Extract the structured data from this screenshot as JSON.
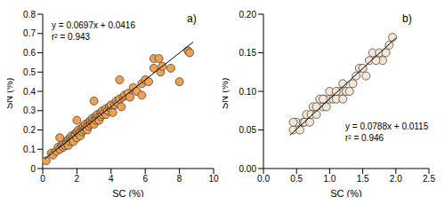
{
  "chart_data": [
    {
      "type": "scatter",
      "title": "a)",
      "x_label": "SC (%)",
      "y_label": "SN (%)",
      "xlim": [
        0,
        10
      ],
      "xticks": [
        0,
        2,
        4,
        6,
        8,
        10
      ],
      "ylim": [
        0,
        0.8
      ],
      "yticks": [
        0,
        0.1,
        0.2,
        0.3,
        0.4,
        0.5,
        0.6,
        0.7,
        0.8
      ],
      "color": "#f0a050",
      "marker": "circle",
      "x": [
        0.2,
        0.5,
        0.6,
        0.8,
        0.9,
        1.0,
        1.1,
        1.2,
        1.2,
        1.3,
        1.4,
        1.4,
        1.5,
        1.5,
        1.6,
        1.6,
        1.7,
        1.7,
        1.8,
        1.8,
        1.9,
        1.9,
        2.0,
        2.0,
        2.1,
        2.1,
        2.2,
        2.2,
        2.3,
        2.3,
        2.4,
        2.4,
        2.5,
        2.5,
        2.6,
        2.6,
        2.7,
        2.7,
        2.8,
        2.8,
        2.9,
        2.9,
        3.0,
        3.0,
        3.1,
        3.1,
        3.2,
        3.2,
        3.3,
        3.3,
        3.4,
        3.4,
        3.5,
        3.5,
        3.6,
        3.7,
        3.7,
        3.8,
        3.9,
        4.0,
        4.0,
        4.1,
        4.2,
        4.3,
        4.4,
        4.5,
        4.6,
        4.7,
        4.8,
        5.0,
        5.1,
        5.3,
        5.5,
        5.8,
        6.0,
        6.2,
        6.5,
        6.5,
        6.8,
        6.9,
        7.0,
        7.5,
        8.0,
        8.5,
        8.6,
        2.0,
        1.0,
        3.0,
        4.5,
        5.8
      ],
      "values": [
        0.04,
        0.08,
        0.07,
        0.09,
        0.11,
        0.1,
        0.12,
        0.11,
        0.13,
        0.12,
        0.14,
        0.13,
        0.15,
        0.12,
        0.14,
        0.16,
        0.15,
        0.17,
        0.16,
        0.14,
        0.18,
        0.17,
        0.16,
        0.19,
        0.18,
        0.2,
        0.19,
        0.17,
        0.21,
        0.19,
        0.2,
        0.22,
        0.21,
        0.23,
        0.22,
        0.2,
        0.24,
        0.22,
        0.23,
        0.25,
        0.24,
        0.26,
        0.25,
        0.23,
        0.27,
        0.25,
        0.26,
        0.28,
        0.27,
        0.25,
        0.29,
        0.27,
        0.28,
        0.3,
        0.29,
        0.31,
        0.28,
        0.3,
        0.32,
        0.31,
        0.33,
        0.29,
        0.33,
        0.35,
        0.34,
        0.36,
        0.32,
        0.37,
        0.38,
        0.39,
        0.37,
        0.42,
        0.4,
        0.44,
        0.46,
        0.45,
        0.52,
        0.57,
        0.57,
        0.5,
        0.53,
        0.52,
        0.45,
        0.61,
        0.6,
        0.25,
        0.16,
        0.35,
        0.46,
        0.38
      ],
      "fit": {
        "slope": 0.0697,
        "intercept": 0.0416,
        "x_range": [
          0.1,
          8.8
        ]
      },
      "annotations": [
        "y = 0.0697x + 0.0416",
        "r² = 0.943"
      ]
    },
    {
      "type": "scatter",
      "title": "b)",
      "x_label": "SC (%)",
      "y_label": "SN (%)",
      "xlim": [
        0,
        2.5
      ],
      "xticks": [
        {
          "value": 0,
          "label": "0.0"
        },
        {
          "value": 0.5,
          "label": "0.5"
        },
        {
          "value": 1,
          "label": "1.0"
        },
        {
          "value": 1.5,
          "label": "1.5"
        },
        {
          "value": 2,
          "label": "2.0"
        },
        {
          "value": 2.5,
          "label": "2.5"
        }
      ],
      "ylim": [
        0,
        0.2
      ],
      "yticks": [
        {
          "value": 0,
          "label": "0.00"
        },
        {
          "value": 0.05,
          "label": "0.05"
        },
        {
          "value": 0.1,
          "label": "0.10"
        },
        {
          "value": 0.15,
          "label": "0.15"
        },
        {
          "value": 0.2,
          "label": "0.20"
        }
      ],
      "color": "#f5e6d3",
      "marker": "circle",
      "x": [
        0.45,
        0.5,
        0.55,
        0.6,
        0.62,
        0.65,
        0.7,
        0.72,
        0.75,
        0.8,
        0.85,
        0.9,
        0.92,
        0.95,
        1.0,
        1.05,
        1.1,
        1.15,
        1.2,
        1.25,
        1.3,
        1.35,
        1.4,
        1.45,
        1.5,
        1.55,
        1.6,
        1.65,
        1.75,
        1.8,
        1.85,
        1.9,
        1.95,
        0.45,
        0.8,
        1.0,
        1.2,
        1.7,
        0.9,
        1.1
      ],
      "values": [
        0.05,
        0.06,
        0.05,
        0.06,
        0.06,
        0.07,
        0.06,
        0.07,
        0.08,
        0.07,
        0.09,
        0.08,
        0.09,
        0.08,
        0.09,
        0.09,
        0.09,
        0.1,
        0.09,
        0.1,
        0.1,
        0.11,
        0.12,
        0.13,
        0.13,
        0.12,
        0.14,
        0.15,
        0.15,
        0.14,
        0.15,
        0.16,
        0.17,
        0.06,
        0.08,
        0.1,
        0.11,
        0.14,
        0.09,
        0.1
      ],
      "fit": {
        "slope": 0.0788,
        "intercept": 0.0115,
        "x_range": [
          0.4,
          2.0
        ]
      },
      "annotations": [
        "y = 0.0788x + 0.0115",
        "r² = 0.946"
      ]
    }
  ]
}
